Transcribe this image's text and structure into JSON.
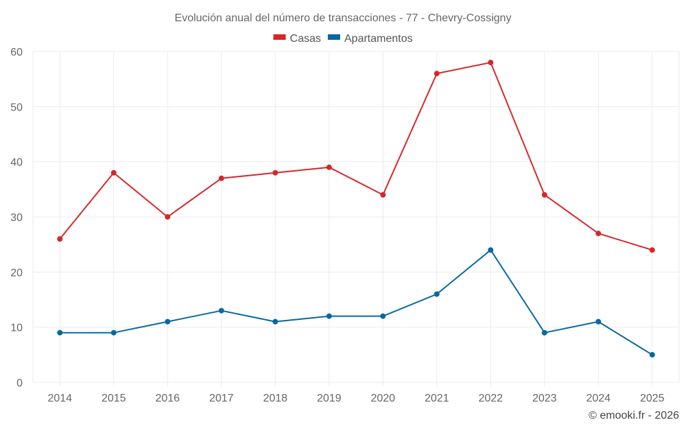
{
  "chart_data": {
    "type": "line",
    "title": "Evolución anual del número de transacciones - 77 - Chevry-Cossigny",
    "xlabel": "",
    "ylabel": "",
    "categories": [
      "2014",
      "2015",
      "2016",
      "2017",
      "2018",
      "2019",
      "2020",
      "2021",
      "2022",
      "2023",
      "2024",
      "2025"
    ],
    "series": [
      {
        "name": "Casas",
        "color": "#d62728",
        "values": [
          26,
          38,
          30,
          37,
          38,
          39,
          34,
          56,
          58,
          34,
          27,
          24
        ]
      },
      {
        "name": "Apartamentos",
        "color": "#0868a0",
        "values": [
          9,
          9,
          11,
          13,
          11,
          12,
          12,
          16,
          24,
          9,
          11,
          5
        ]
      }
    ],
    "ylim": [
      0,
      60
    ],
    "yticks": [
      0,
      10,
      20,
      30,
      40,
      50,
      60
    ],
    "grid": true,
    "legend": "top-center"
  },
  "credit": "© emooki.fr - 2026"
}
